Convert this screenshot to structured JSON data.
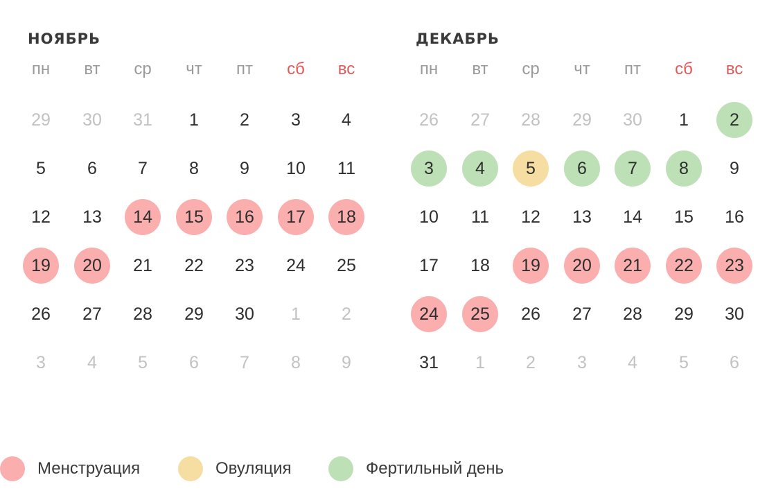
{
  "colors": {
    "menstruation": "#fbaeae",
    "ovulation": "#f6dea3",
    "fertile": "#bde0b6",
    "weekend_text": "#e05a5a"
  },
  "months": [
    {
      "title": "НОЯБРЬ",
      "weekdays": [
        "пн",
        "вт",
        "ср",
        "чт",
        "пт",
        "сб",
        "вс"
      ],
      "weekend_index": [
        5,
        6
      ],
      "weeks": [
        [
          {
            "d": "29",
            "s": "muted"
          },
          {
            "d": "30",
            "s": "muted"
          },
          {
            "d": "31",
            "s": "muted"
          },
          {
            "d": "1"
          },
          {
            "d": "2"
          },
          {
            "d": "3"
          },
          {
            "d": "4"
          }
        ],
        [
          {
            "d": "5"
          },
          {
            "d": "6"
          },
          {
            "d": "7"
          },
          {
            "d": "8"
          },
          {
            "d": "9"
          },
          {
            "d": "10"
          },
          {
            "d": "11"
          }
        ],
        [
          {
            "d": "12"
          },
          {
            "d": "13"
          },
          {
            "d": "14",
            "s": "menstruation"
          },
          {
            "d": "15",
            "s": "menstruation"
          },
          {
            "d": "16",
            "s": "menstruation"
          },
          {
            "d": "17",
            "s": "menstruation"
          },
          {
            "d": "18",
            "s": "menstruation"
          }
        ],
        [
          {
            "d": "19",
            "s": "menstruation"
          },
          {
            "d": "20",
            "s": "menstruation"
          },
          {
            "d": "21"
          },
          {
            "d": "22"
          },
          {
            "d": "23"
          },
          {
            "d": "24"
          },
          {
            "d": "25"
          }
        ],
        [
          {
            "d": "26"
          },
          {
            "d": "27"
          },
          {
            "d": "28"
          },
          {
            "d": "29"
          },
          {
            "d": "30"
          },
          {
            "d": "1",
            "s": "muted"
          },
          {
            "d": "2",
            "s": "muted"
          }
        ],
        [
          {
            "d": "3",
            "s": "muted"
          },
          {
            "d": "4",
            "s": "muted"
          },
          {
            "d": "5",
            "s": "muted"
          },
          {
            "d": "6",
            "s": "muted"
          },
          {
            "d": "7",
            "s": "muted"
          },
          {
            "d": "8",
            "s": "muted"
          },
          {
            "d": "9",
            "s": "muted"
          }
        ]
      ]
    },
    {
      "title": "ДЕКАБРЬ",
      "weekdays": [
        "пн",
        "вт",
        "ср",
        "чт",
        "пт",
        "сб",
        "вс"
      ],
      "weekend_index": [
        5,
        6
      ],
      "weeks": [
        [
          {
            "d": "26",
            "s": "muted"
          },
          {
            "d": "27",
            "s": "muted"
          },
          {
            "d": "28",
            "s": "muted"
          },
          {
            "d": "29",
            "s": "muted"
          },
          {
            "d": "30",
            "s": "muted"
          },
          {
            "d": "1"
          },
          {
            "d": "2",
            "s": "fertile"
          }
        ],
        [
          {
            "d": "3",
            "s": "fertile"
          },
          {
            "d": "4",
            "s": "fertile"
          },
          {
            "d": "5",
            "s": "ovulation"
          },
          {
            "d": "6",
            "s": "fertile"
          },
          {
            "d": "7",
            "s": "fertile"
          },
          {
            "d": "8",
            "s": "fertile"
          },
          {
            "d": "9"
          }
        ],
        [
          {
            "d": "10"
          },
          {
            "d": "11"
          },
          {
            "d": "12"
          },
          {
            "d": "13"
          },
          {
            "d": "14"
          },
          {
            "d": "15"
          },
          {
            "d": "16"
          }
        ],
        [
          {
            "d": "17"
          },
          {
            "d": "18"
          },
          {
            "d": "19",
            "s": "menstruation"
          },
          {
            "d": "20",
            "s": "menstruation"
          },
          {
            "d": "21",
            "s": "menstruation"
          },
          {
            "d": "22",
            "s": "menstruation"
          },
          {
            "d": "23",
            "s": "menstruation"
          }
        ],
        [
          {
            "d": "24",
            "s": "menstruation"
          },
          {
            "d": "25",
            "s": "menstruation"
          },
          {
            "d": "26"
          },
          {
            "d": "27"
          },
          {
            "d": "28"
          },
          {
            "d": "29"
          },
          {
            "d": "30"
          }
        ],
        [
          {
            "d": "31"
          },
          {
            "d": "1",
            "s": "muted"
          },
          {
            "d": "2",
            "s": "muted"
          },
          {
            "d": "3",
            "s": "muted"
          },
          {
            "d": "4",
            "s": "muted"
          },
          {
            "d": "5",
            "s": "muted"
          },
          {
            "d": "6",
            "s": "muted"
          }
        ]
      ]
    }
  ],
  "legend": [
    {
      "key": "menstruation",
      "label": "Менструация"
    },
    {
      "key": "ovulation",
      "label": "Овуляция"
    },
    {
      "key": "fertile",
      "label": "Фертильный день"
    }
  ]
}
